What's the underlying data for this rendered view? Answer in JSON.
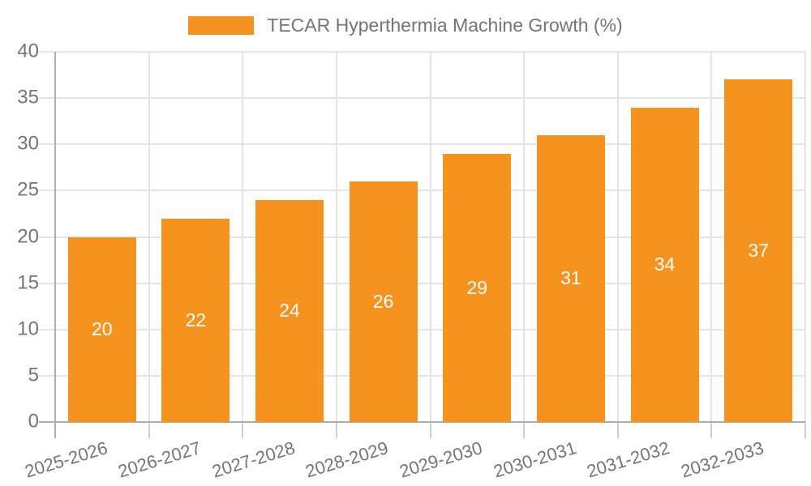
{
  "chart_data": {
    "type": "bar",
    "title": "TECAR Hyperthermia Machine Growth (%)",
    "legend": {
      "position": "top",
      "label": "TECAR Hyperthermia Machine Growth (%)"
    },
    "categories": [
      "2025-2026",
      "2026-2027",
      "2027-2028",
      "2028-2029",
      "2029-2030",
      "2030-2031",
      "2031-2032",
      "2032-2033"
    ],
    "series": [
      {
        "name": "TECAR Hyperthermia Machine Growth (%)",
        "values": [
          20,
          22,
          24,
          26,
          29,
          31,
          34,
          37
        ]
      }
    ],
    "bar_labels": [
      20,
      22,
      24,
      26,
      29,
      31,
      34,
      37
    ],
    "xlabel": "",
    "ylabel": "",
    "ylim": [
      0,
      40
    ],
    "yticks": [
      0,
      5,
      10,
      15,
      20,
      25,
      30,
      35,
      40
    ],
    "grid": "horizontal-and-vertical-category-boundaries"
  },
  "theme": {
    "bar_color": "#F6921E",
    "bar_label_color": "#ffffff",
    "axis_text_color": "#757575",
    "grid_color": "#E4E4E4",
    "axis_line_color": "#AEAEB1",
    "x_tick_color": "#CFCFCF",
    "background": "#ffffff"
  }
}
